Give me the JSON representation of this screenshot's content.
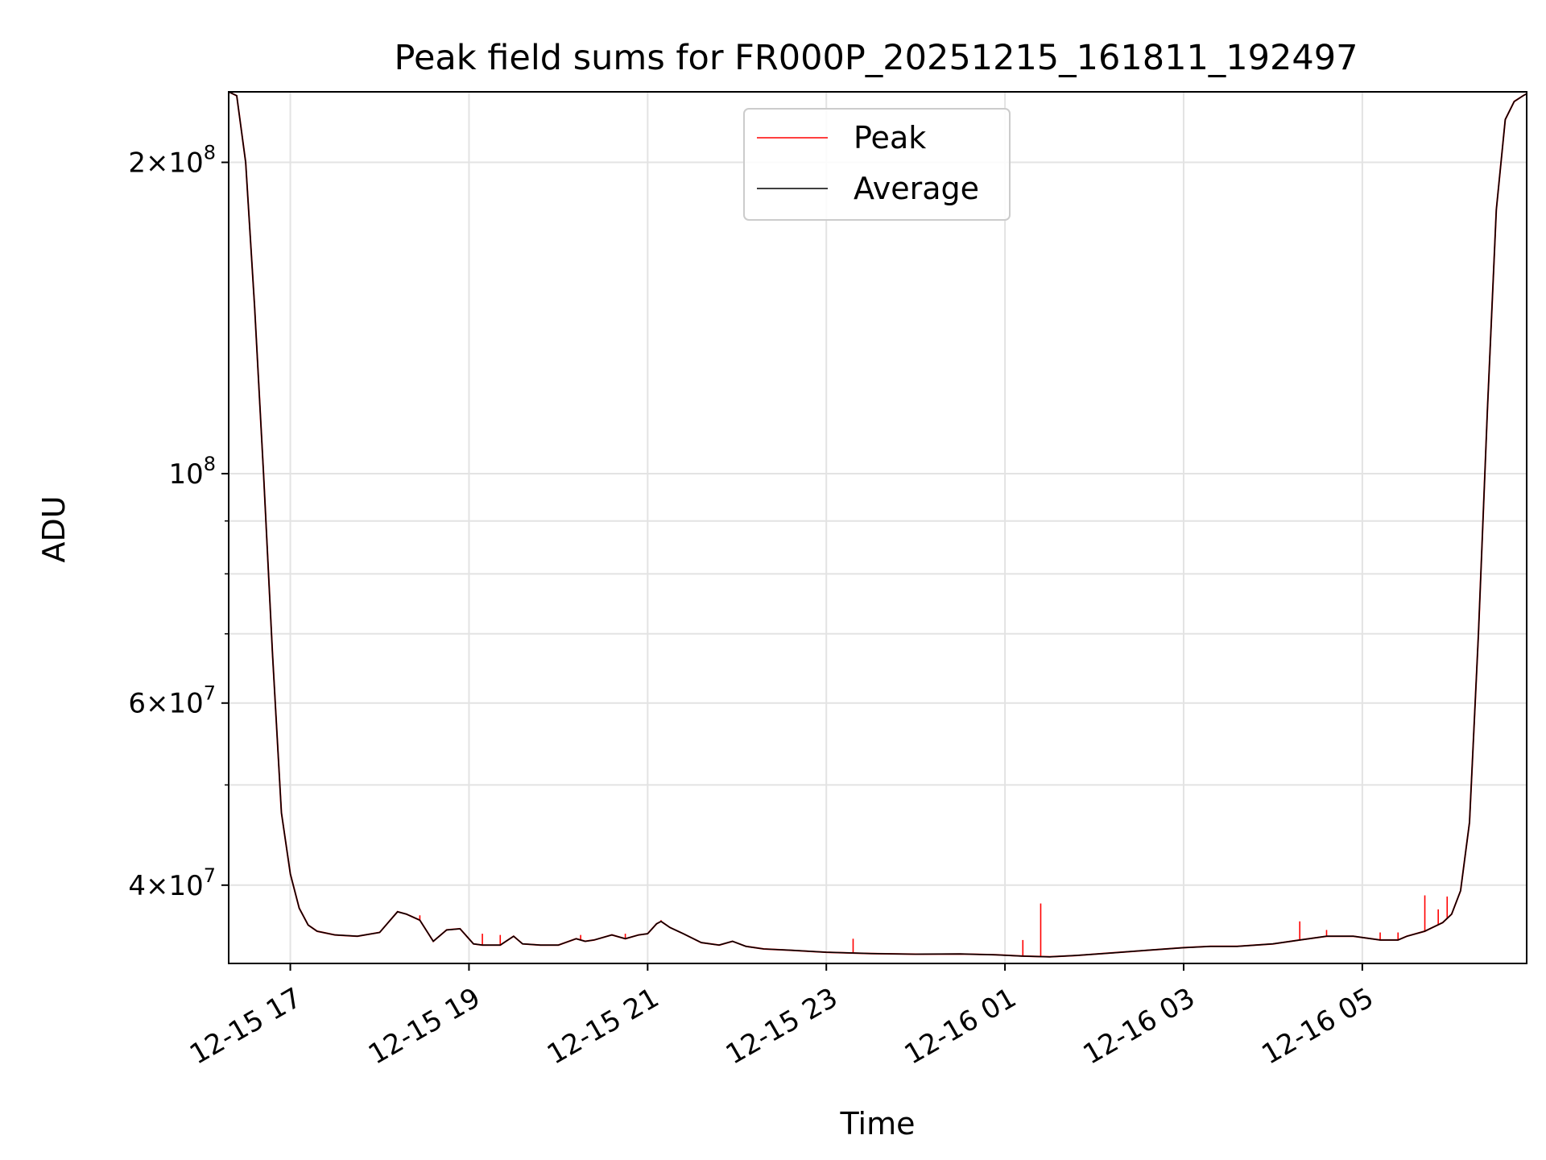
{
  "chart_data": {
    "type": "line",
    "title": "Peak field sums for FR000P_20251215_161811_192497",
    "xlabel": "Time",
    "ylabel": "ADU",
    "yscale": "log",
    "xlim": [
      16.31,
      30.84
    ],
    "ylim": [
      33600000,
      234000000
    ],
    "grid": true,
    "legend_location": "upper center",
    "x_ticks": [
      {
        "value": 17,
        "label": "12-15 17"
      },
      {
        "value": 19,
        "label": "12-15 19"
      },
      {
        "value": 21,
        "label": "12-15 21"
      },
      {
        "value": 23,
        "label": "12-15 23"
      },
      {
        "value": 25,
        "label": "12-16 01"
      },
      {
        "value": 27,
        "label": "12-16 03"
      },
      {
        "value": 29,
        "label": "12-16 05"
      }
    ],
    "y_ticks": [
      {
        "value": 40000000,
        "mantissa": "4",
        "exponent": "7"
      },
      {
        "value": 60000000,
        "mantissa": "6",
        "exponent": "7"
      },
      {
        "value": 100000000,
        "mantissa": "",
        "exponent": "8"
      },
      {
        "value": 200000000,
        "mantissa": "2",
        "exponent": "8"
      }
    ],
    "y_minor_ticks": [
      50000000,
      70000000,
      80000000,
      90000000
    ],
    "x_unit_note": "x values are hours since 12-15 00:00",
    "series": [
      {
        "name": "Average",
        "color": "#000000",
        "x": [
          16.31,
          16.4,
          16.5,
          16.6,
          16.7,
          16.8,
          16.9,
          17.0,
          17.1,
          17.2,
          17.3,
          17.5,
          17.75,
          18.0,
          18.2,
          18.3,
          18.45,
          18.6,
          18.75,
          18.9,
          19.05,
          19.15,
          19.35,
          19.5,
          19.6,
          19.8,
          20.0,
          20.2,
          20.3,
          20.4,
          20.6,
          20.75,
          20.9,
          21.0,
          21.1,
          21.15,
          21.25,
          21.4,
          21.6,
          21.8,
          21.95,
          22.1,
          22.3,
          22.6,
          23.0,
          23.5,
          24.0,
          24.5,
          24.9,
          25.2,
          25.5,
          25.8,
          26.2,
          26.6,
          27.0,
          27.3,
          27.6,
          28.0,
          28.3,
          28.6,
          28.9,
          29.2,
          29.4,
          29.5,
          29.7,
          29.9,
          30.0,
          30.1,
          30.2,
          30.3,
          30.4,
          30.5,
          30.6,
          30.7,
          30.8,
          30.84
        ],
        "values": [
          234000000,
          232000000,
          200000000,
          145000000,
          100000000,
          67000000,
          47000000,
          41000000,
          38000000,
          36600000,
          36100000,
          35800000,
          35700000,
          36000000,
          37700000,
          37500000,
          37000000,
          35300000,
          36200000,
          36300000,
          35100000,
          35000000,
          35000000,
          35700000,
          35100000,
          35000000,
          35000000,
          35500000,
          35300000,
          35400000,
          35800000,
          35500000,
          35800000,
          35900000,
          36700000,
          36900000,
          36400000,
          35900000,
          35200000,
          35000000,
          35300000,
          34900000,
          34700000,
          34600000,
          34450000,
          34350000,
          34300000,
          34320000,
          34250000,
          34150000,
          34100000,
          34200000,
          34400000,
          34600000,
          34800000,
          34900000,
          34900000,
          35100000,
          35400000,
          35700000,
          35700000,
          35400000,
          35400000,
          35700000,
          36100000,
          36800000,
          37500000,
          39500000,
          46000000,
          70000000,
          115000000,
          180000000,
          220000000,
          229000000,
          232000000,
          233000000
        ]
      },
      {
        "name": "Peak",
        "color": "#ff0000",
        "x": [
          18.45,
          19.15,
          19.35,
          20.25,
          20.75,
          21.15,
          23.3,
          25.2,
          25.4,
          28.3,
          28.6,
          29.2,
          29.4,
          29.7,
          29.85,
          29.95
        ],
        "values": [
          37400000,
          35900000,
          35800000,
          35800000,
          35900000,
          37000000,
          35500000,
          35400000,
          38400000,
          36900000,
          36200000,
          36000000,
          36000000,
          39100000,
          37900000,
          39000000
        ]
      }
    ]
  }
}
